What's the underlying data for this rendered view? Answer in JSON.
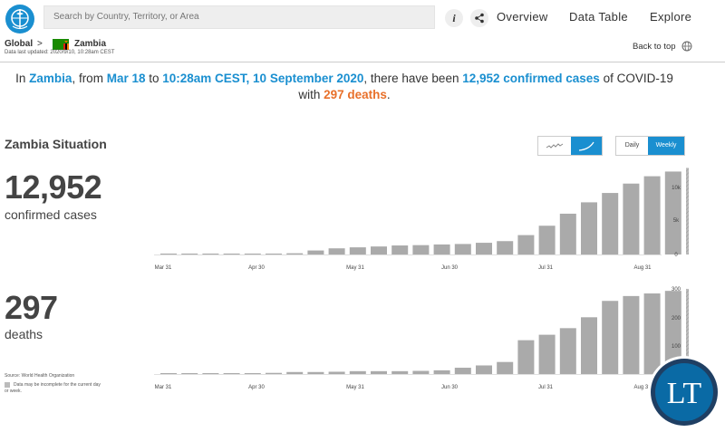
{
  "search": {
    "placeholder": "Search by Country, Territory, or Area"
  },
  "nav": {
    "info_icon": "i",
    "share_icon": "share",
    "overview": "Overview",
    "data_table": "Data Table",
    "explore": "Explore"
  },
  "breadcrumb": {
    "global": "Global",
    "separator": ">",
    "country": "Zambia"
  },
  "updated": "Data last updated: 2020/9/10, 10:28am CEST",
  "back_to_top": "Back to top",
  "headline": {
    "p1": "In ",
    "country": "Zambia",
    "p2": ", from ",
    "from": "Mar 18",
    "p3": " to ",
    "to": "10:28am CEST, 10 September 2020",
    "p4": ", there have been ",
    "cases": "12,952 confirmed cases",
    "p5": " of COVID-19",
    "p6": "with ",
    "deaths": "297 deaths",
    "p7": "."
  },
  "section_title": "Zambia Situation",
  "toggles": {
    "daily": "Daily",
    "weekly": "Weekly",
    "selected": "Weekly",
    "chart_style_selected": "cumulative"
  },
  "colors": {
    "accent": "#1a8fd0",
    "highlight": "#e8702a",
    "bar": "#aaaaaa"
  },
  "cases_block": {
    "number": "12,952",
    "label": "confirmed cases"
  },
  "deaths_block": {
    "number": "297",
    "label": "deaths"
  },
  "source": "Source: World Health Organization",
  "legend_note": "Data may be incomplete for the current day or week.",
  "watermark": "LT",
  "chart_data": [
    {
      "type": "bar",
      "title": "",
      "x_ticks": [
        "Mar 31",
        "Apr 30",
        "May 31",
        "Jun 30",
        "Jul 31",
        "Aug 31"
      ],
      "y_ticks": [
        "10k",
        "5k",
        "0"
      ],
      "ylim": [
        0,
        13000
      ],
      "values": [
        3,
        35,
        40,
        45,
        80,
        110,
        180,
        600,
        920,
        1070,
        1200,
        1350,
        1400,
        1500,
        1570,
        1750,
        2000,
        2900,
        4300,
        6100,
        7800,
        9200,
        10600,
        11700,
        12400,
        12952
      ],
      "last_bar_incomplete": true
    },
    {
      "type": "bar",
      "title": "",
      "x_ticks": [
        "Mar 31",
        "Apr 30",
        "May 31",
        "Jun 30",
        "Jul 31",
        "Aug 31"
      ],
      "y_ticks": [
        "300",
        "200",
        "100"
      ],
      "ylim": [
        0,
        300
      ],
      "values": [
        0,
        0,
        1,
        2,
        3,
        4,
        7,
        7,
        8,
        10,
        10,
        10,
        11,
        13,
        22,
        30,
        42,
        118,
        137,
        160,
        198,
        255,
        272,
        281,
        290,
        297
      ],
      "last_bar_incomplete": true
    }
  ]
}
